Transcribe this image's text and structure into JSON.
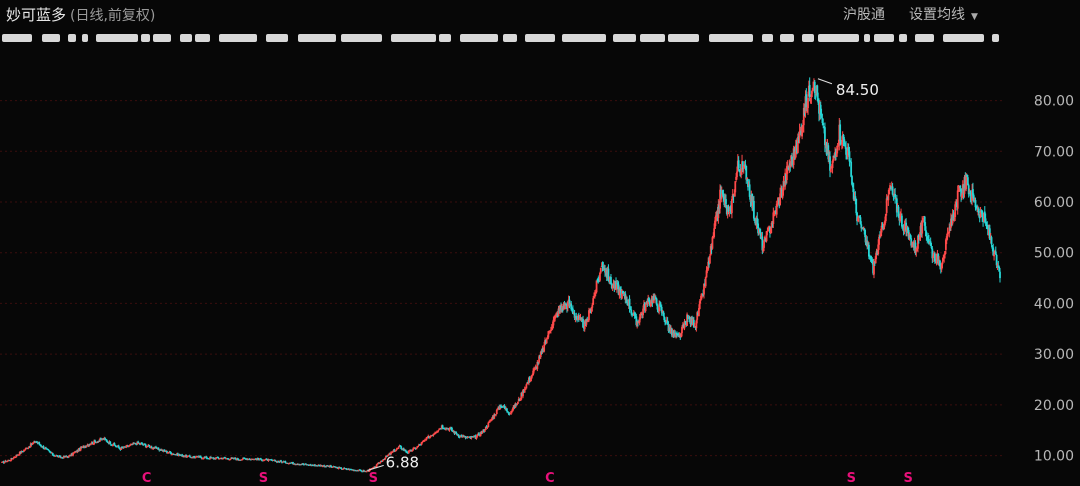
{
  "header": {
    "stock_name": "妙可蓝多",
    "subtitle": "(日线,前复权)",
    "link_hgt": "沪股通",
    "link_ma": "设置均线"
  },
  "colors": {
    "up": "#ff4a4a",
    "down": "#27d6d6",
    "grid": "#3a0e0e",
    "marker": "#e8107a"
  },
  "chart_data": {
    "type": "line",
    "title": "妙可蓝多",
    "scale": "linear",
    "ylim": [
      4,
      88
    ],
    "yticks": [
      10,
      20,
      30,
      40,
      50,
      60,
      70,
      80
    ],
    "ytick_labels": [
      "10.00",
      "20.00",
      "30.00",
      "40.00",
      "50.00",
      "60.00",
      "70.00",
      "80.00"
    ],
    "grid": true,
    "series": [
      {
        "values": [
          8.6,
          9.2,
          10.4,
          11.6,
          12.8,
          11.5,
          10.2,
          9.6,
          9.9,
          11.1,
          12.1,
          12.7,
          13.3,
          12.3,
          11.4,
          11.9,
          12.5,
          12.0,
          11.5,
          11.0,
          10.5,
          10.1,
          9.8,
          9.7,
          9.6,
          9.5,
          9.5,
          9.4,
          9.3,
          9.4,
          9.3,
          9.2,
          9.0,
          8.8,
          8.6,
          8.4,
          8.2,
          8.1,
          8.0,
          7.8,
          7.5,
          7.3,
          7.1,
          6.88,
          7.6,
          9.2,
          10.5,
          11.7,
          10.6,
          11.6,
          13.0,
          14.4,
          15.8,
          15.2,
          14.0,
          13.5,
          13.6,
          15.0,
          17.5,
          20.0,
          18.5,
          20.5,
          24.0,
          27.0,
          31.0,
          36.0,
          39.0,
          40.0,
          37.0,
          35.5,
          41.5,
          48.0,
          44.0,
          42.5,
          40.5,
          36.0,
          39.5,
          41.0,
          38.5,
          34.5,
          33.0,
          37.0,
          36.0,
          43.0,
          52.0,
          62.0,
          57.0,
          67.0,
          66.0,
          57.0,
          51.0,
          56.0,
          61.0,
          67.0,
          71.0,
          79.0,
          84.5,
          75.0,
          66.0,
          74.0,
          70.0,
          58.0,
          53.0,
          47.0,
          54.0,
          63.0,
          58.0,
          54.0,
          51.0,
          56.0,
          50.0,
          48.0,
          54.0,
          61.0,
          64.0,
          60.0,
          57.0,
          52.0,
          45.0
        ]
      }
    ],
    "annotations": [
      {
        "label": "84.50",
        "value": 84.5,
        "type": "high"
      },
      {
        "label": "6.88",
        "value": 6.88,
        "type": "low"
      }
    ],
    "event_markers": [
      "C",
      "S",
      "S",
      "C",
      "S",
      "S"
    ]
  }
}
